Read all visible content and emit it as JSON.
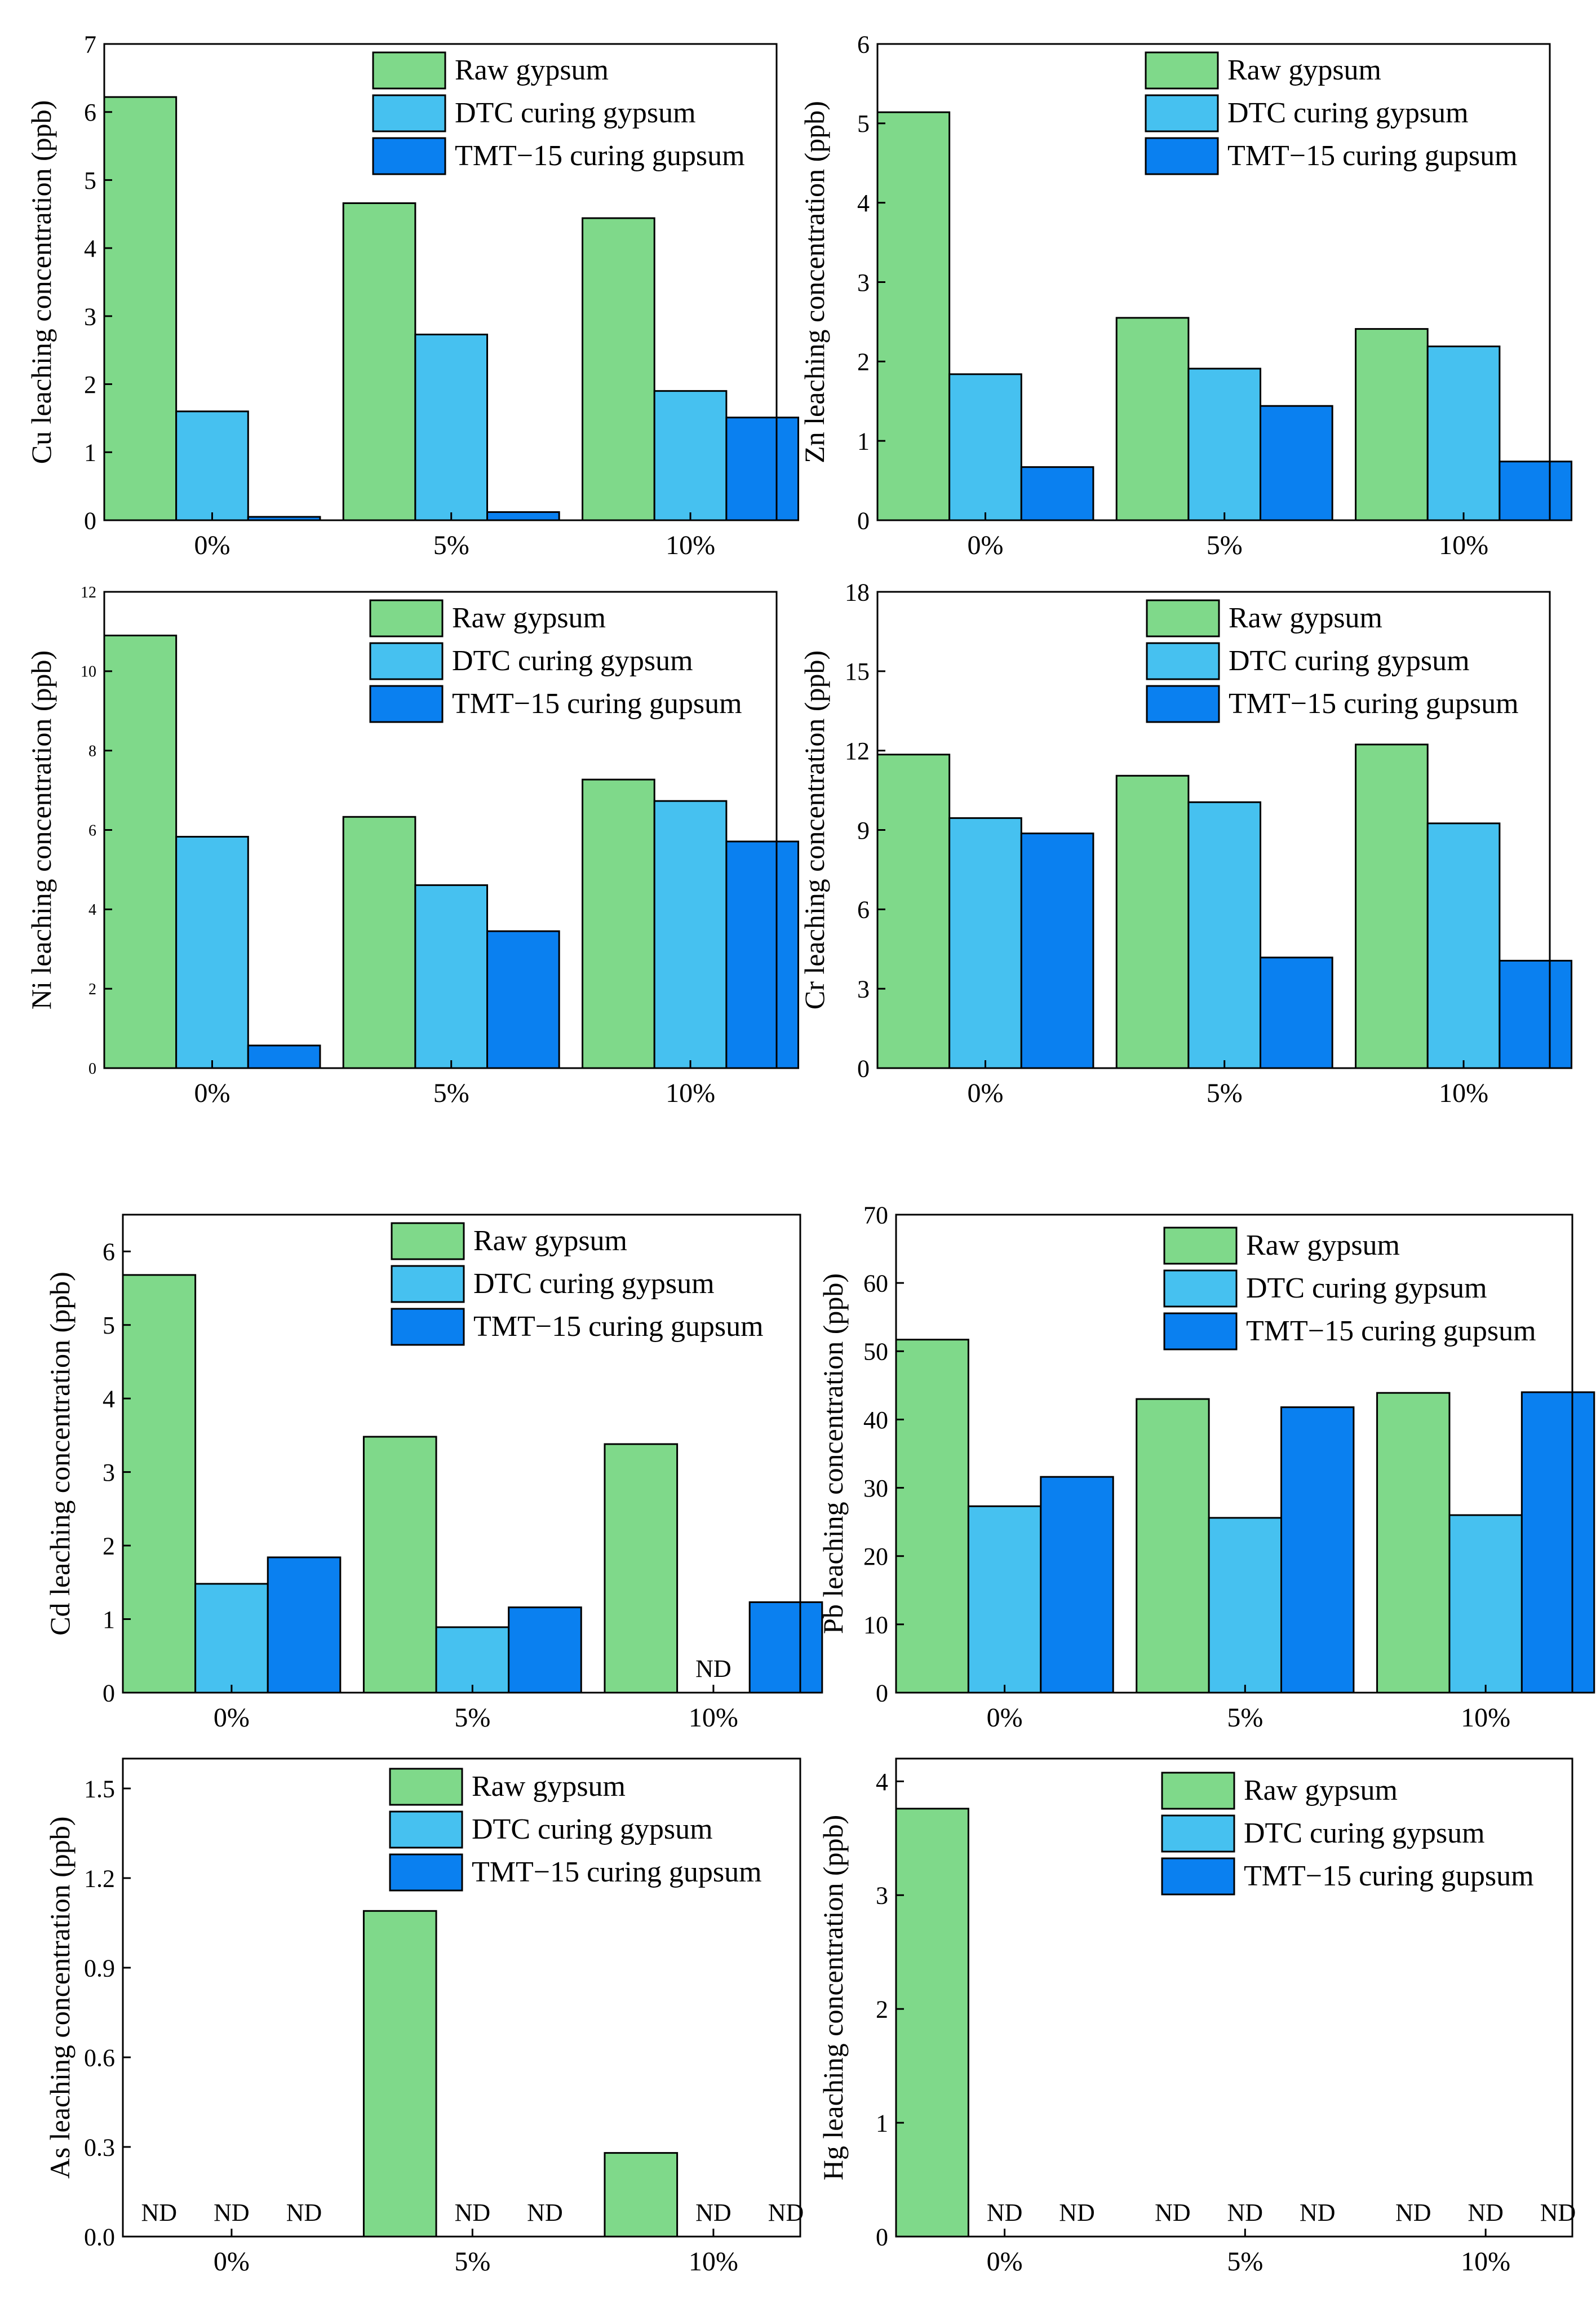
{
  "legend_labels": [
    "Raw gypsum",
    "DTC curing gypsum",
    "TMT−15 curing gupsum"
  ],
  "colors": {
    "raw": "#7fd98a",
    "dtc": "#46c1f0",
    "tmt": "#0a80f0",
    "edge": "#000000"
  },
  "chart_data": [
    {
      "id": "cu",
      "type": "bar",
      "ylabel": "Cu leaching concentration (ppb)",
      "categories": [
        "0%",
        "5%",
        "10%"
      ],
      "ylim": [
        0,
        7
      ],
      "yticks": [
        "0",
        "1",
        "2",
        "3",
        "4",
        "5",
        "6",
        "7"
      ],
      "series": [
        {
          "name": "Raw gypsum",
          "values": [
            6.22,
            4.66,
            4.44
          ]
        },
        {
          "name": "DTC curing gypsum",
          "values": [
            1.6,
            2.73,
            1.9
          ]
        },
        {
          "name": "TMT−15 curing gupsum",
          "values": [
            0.05,
            0.12,
            1.51
          ]
        }
      ]
    },
    {
      "id": "zn",
      "type": "bar",
      "ylabel": "Zn leaching concentration (ppb)",
      "categories": [
        "0%",
        "5%",
        "10%"
      ],
      "ylim": [
        0,
        6
      ],
      "yticks": [
        "0",
        "1",
        "2",
        "3",
        "4",
        "5",
        "6"
      ],
      "series": [
        {
          "name": "Raw gypsum",
          "values": [
            5.14,
            2.55,
            2.41
          ]
        },
        {
          "name": "DTC curing gypsum",
          "values": [
            1.84,
            1.91,
            2.19
          ]
        },
        {
          "name": "TMT−15 curing gupsum",
          "values": [
            0.67,
            1.44,
            0.74
          ]
        }
      ]
    },
    {
      "id": "ni",
      "type": "bar",
      "ylabel": "Ni leaching concentration (ppb)",
      "categories": [
        "0%",
        "5%",
        "10%"
      ],
      "ylim": [
        0,
        12
      ],
      "yticks": [
        "0",
        "2",
        "4",
        "6",
        "8",
        "10",
        "12"
      ],
      "series": [
        {
          "name": "Raw gypsum",
          "values": [
            10.9,
            6.33,
            7.27
          ]
        },
        {
          "name": "DTC curing gypsum",
          "values": [
            5.83,
            4.61,
            6.73
          ]
        },
        {
          "name": "TMT−15 curing gupsum",
          "values": [
            0.57,
            3.45,
            5.71
          ]
        }
      ]
    },
    {
      "id": "cr",
      "type": "bar",
      "ylabel": "Cr leaching concentration (ppb)",
      "categories": [
        "0%",
        "5%",
        "10%"
      ],
      "ylim": [
        0,
        18
      ],
      "yticks": [
        "0",
        "3",
        "6",
        "9",
        "12",
        "15",
        "18"
      ],
      "series": [
        {
          "name": "Raw gypsum",
          "values": [
            11.85,
            11.05,
            12.23
          ]
        },
        {
          "name": "DTC curing gypsum",
          "values": [
            9.45,
            10.05,
            9.25
          ]
        },
        {
          "name": "TMT−15 curing gupsum",
          "values": [
            8.87,
            4.18,
            4.06
          ]
        }
      ]
    },
    {
      "id": "cd",
      "type": "bar",
      "ylabel": "Cd leaching concentration (ppb)",
      "categories": [
        "0%",
        "5%",
        "10%"
      ],
      "ylim": [
        0,
        6.5
      ],
      "yticks": [
        "0",
        "1",
        "2",
        "3",
        "4",
        "5",
        "6"
      ],
      "series": [
        {
          "name": "Raw gypsum",
          "values": [
            5.68,
            3.48,
            3.38
          ]
        },
        {
          "name": "DTC curing gypsum",
          "values": [
            1.48,
            0.89,
            null
          ]
        },
        {
          "name": "TMT−15 curing gupsum",
          "values": [
            1.84,
            1.16,
            1.23
          ]
        }
      ],
      "nd_label": "ND"
    },
    {
      "id": "pb",
      "type": "bar",
      "ylabel": "Pb leaching concentration (ppb)",
      "categories": [
        "0%",
        "5%",
        "10%"
      ],
      "ylim": [
        0,
        70
      ],
      "yticks": [
        "0",
        "10",
        "20",
        "30",
        "40",
        "50",
        "60",
        "70"
      ],
      "series": [
        {
          "name": "Raw gypsum",
          "values": [
            51.7,
            43.0,
            43.9
          ]
        },
        {
          "name": "DTC curing gypsum",
          "values": [
            27.3,
            25.6,
            26.0
          ]
        },
        {
          "name": "TMT−15 curing gupsum",
          "values": [
            31.6,
            41.8,
            44.0
          ]
        }
      ]
    },
    {
      "id": "as",
      "type": "bar",
      "ylabel": "As leaching concentration (ppb)",
      "categories": [
        "0%",
        "5%",
        "10%"
      ],
      "ylim": [
        0,
        1.6
      ],
      "yticks": [
        "0.0",
        "0.3",
        "0.6",
        "0.9",
        "1.2",
        "1.5"
      ],
      "series": [
        {
          "name": "Raw gypsum",
          "values": [
            null,
            1.09,
            0.28
          ]
        },
        {
          "name": "DTC curing gypsum",
          "values": [
            null,
            null,
            null
          ]
        },
        {
          "name": "TMT−15 curing gupsum",
          "values": [
            null,
            null,
            null
          ]
        }
      ],
      "nd_label": "ND"
    },
    {
      "id": "hg",
      "type": "bar",
      "ylabel": "Hg leaching concentration (ppb)",
      "categories": [
        "0%",
        "5%",
        "10%"
      ],
      "ylim": [
        0,
        4.2
      ],
      "yticks": [
        "0",
        "1",
        "2",
        "3",
        "4"
      ],
      "series": [
        {
          "name": "Raw gypsum",
          "values": [
            3.76,
            null,
            null
          ]
        },
        {
          "name": "DTC curing gypsum",
          "values": [
            null,
            null,
            null
          ]
        },
        {
          "name": "TMT−15 curing gupsum",
          "values": [
            null,
            null,
            null
          ]
        }
      ],
      "nd_label": "ND"
    }
  ]
}
